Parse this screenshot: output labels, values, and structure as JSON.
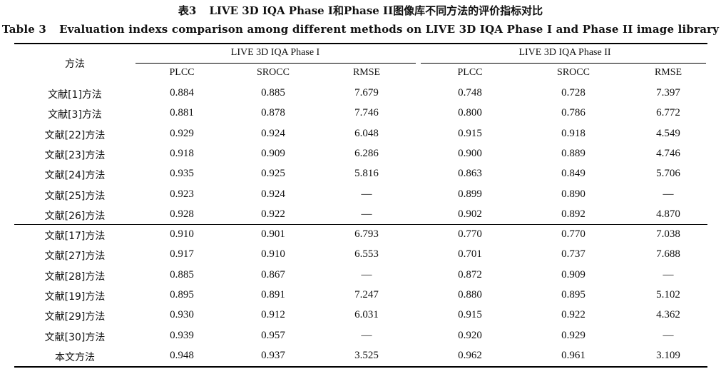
{
  "caption": {
    "cn_label": "表3",
    "cn_title": "LIVE 3D IQA Phase I和Phase II图像库不同方法的评价指标对比",
    "en_label": "Table 3",
    "en_title": "Evaluation indexs comparison among different methods on LIVE 3D IQA Phase I and Phase II image library"
  },
  "table": {
    "method_header": "方法",
    "groups": [
      "LIVE 3D IQA Phase I",
      "LIVE 3D IQA Phase II"
    ],
    "columns": [
      "PLCC",
      "SROCC",
      "RMSE",
      "PLCC",
      "SROCC",
      "RMSE"
    ],
    "rows": [
      {
        "method": "文献[1]方法",
        "values": [
          "0.884",
          "0.885",
          "7.679",
          "0.748",
          "0.728",
          "7.397"
        ]
      },
      {
        "method": "文献[3]方法",
        "values": [
          "0.881",
          "0.878",
          "7.746",
          "0.800",
          "0.786",
          "6.772"
        ]
      },
      {
        "method": "文献[22]方法",
        "values": [
          "0.929",
          "0.924",
          "6.048",
          "0.915",
          "0.918",
          "4.549"
        ]
      },
      {
        "method": "文献[23]方法",
        "values": [
          "0.918",
          "0.909",
          "6.286",
          "0.900",
          "0.889",
          "4.746"
        ]
      },
      {
        "method": "文献[24]方法",
        "values": [
          "0.935",
          "0.925",
          "5.816",
          "0.863",
          "0.849",
          "5.706"
        ]
      },
      {
        "method": "文献[25]方法",
        "values": [
          "0.923",
          "0.924",
          "—",
          "0.899",
          "0.890",
          "—"
        ]
      },
      {
        "method": "文献[26]方法",
        "values": [
          "0.928",
          "0.922",
          "—",
          "0.902",
          "0.892",
          "4.870"
        ]
      },
      {
        "method": "文献[17]方法",
        "values": [
          "0.910",
          "0.901",
          "6.793",
          "0.770",
          "0.770",
          "7.038"
        ]
      },
      {
        "method": "文献[27]方法",
        "values": [
          "0.917",
          "0.910",
          "6.553",
          "0.701",
          "0.737",
          "7.688"
        ]
      },
      {
        "method": "文献[28]方法",
        "values": [
          "0.885",
          "0.867",
          "—",
          "0.872",
          "0.909",
          "—"
        ]
      },
      {
        "method": "文献[19]方法",
        "values": [
          "0.895",
          "0.891",
          "7.247",
          "0.880",
          "0.895",
          "5.102"
        ]
      },
      {
        "method": "文献[29]方法",
        "values": [
          "0.930",
          "0.912",
          "6.031",
          "0.915",
          "0.922",
          "4.362"
        ]
      },
      {
        "method": "文献[30]方法",
        "values": [
          "0.939",
          "0.957",
          "—",
          "0.920",
          "0.929",
          "—"
        ]
      },
      {
        "method": "本文方法",
        "values": [
          "0.948",
          "0.937",
          "3.525",
          "0.962",
          "0.961",
          "3.109"
        ]
      }
    ]
  }
}
